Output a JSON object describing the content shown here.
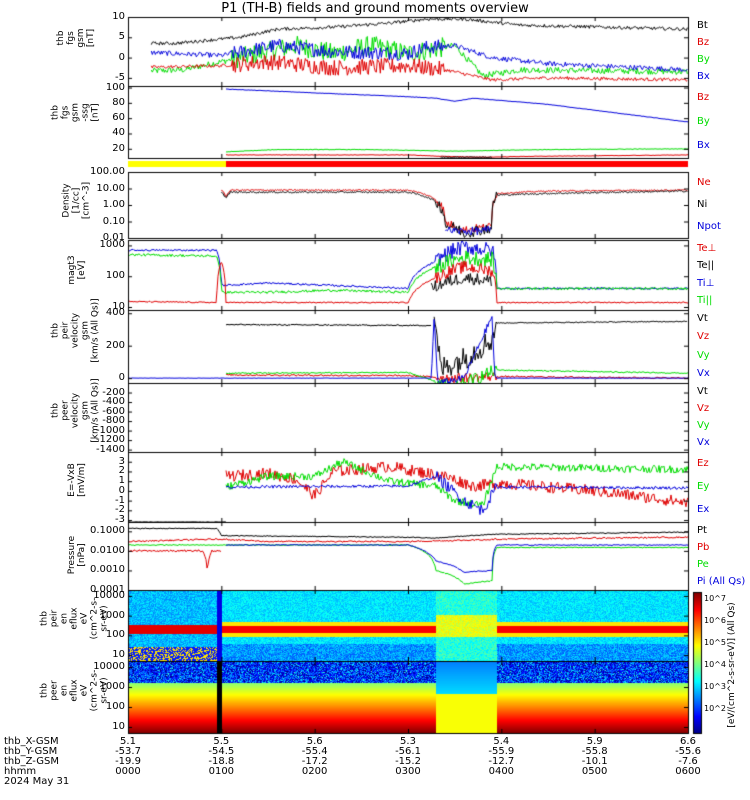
{
  "title": "P1 (TH-B) fields and ground moments overview",
  "colors": {
    "black": "#000000",
    "red": "#e00000",
    "green": "#00dd00",
    "blue": "#0000dd"
  },
  "panels": [
    {
      "id": "fgs_gsm",
      "ylabel": [
        "thb",
        "fgs",
        "gsm",
        "[nT]"
      ],
      "ylim": [
        -7,
        10
      ],
      "yticks": [
        "10",
        "5",
        "0",
        "-5"
      ],
      "ticks": [
        10,
        5,
        0,
        -5
      ],
      "legend": [
        {
          "text": "Bt",
          "color": "black"
        },
        {
          "text": "Bz",
          "color": "red"
        },
        {
          "text": "By",
          "color": "green"
        },
        {
          "text": "Bx",
          "color": "blue"
        }
      ]
    },
    {
      "id": "fgs_gsm2",
      "ylabel": [
        "thb",
        "fgs",
        "gsm",
        "-ssg",
        "[nT]"
      ],
      "ylim": [
        8,
        102
      ],
      "yticks": [
        "100",
        "80",
        "60",
        "40",
        "20"
      ],
      "ticks": [
        100,
        80,
        60,
        40,
        20
      ],
      "legend": [
        {
          "text": "Bz",
          "color": "red"
        },
        {
          "text": "By",
          "color": "green"
        },
        {
          "text": "Bx",
          "color": "blue"
        }
      ]
    },
    {
      "id": "density",
      "ylabel": [
        "Density",
        "[1/cc]",
        "[cm^-3]"
      ],
      "ylim": [
        0.01,
        100
      ],
      "log": true,
      "yticks": [
        "100.00",
        "10.00",
        "1.00",
        "0.10",
        "0.01"
      ],
      "ticks": [
        100,
        10,
        1,
        0.1,
        0.01
      ],
      "legend": [
        {
          "text": "Ne",
          "color": "red"
        },
        {
          "text": "Ni",
          "color": "black"
        },
        {
          "text": "Npot",
          "color": "blue"
        }
      ]
    },
    {
      "id": "temp",
      "ylabel": [
        "magt3",
        "[eV]"
      ],
      "ylim": [
        8,
        1500
      ],
      "log": true,
      "yticks": [
        "1000",
        "100",
        "10"
      ],
      "ticks": [
        1000,
        100,
        10
      ],
      "legend": [
        {
          "text": "Te⊥",
          "color": "red"
        },
        {
          "text": "Te||",
          "color": "black"
        },
        {
          "text": "Ti⊥",
          "color": "blue"
        },
        {
          "text": "Ti||",
          "color": "green"
        }
      ]
    },
    {
      "id": "ivel",
      "ylabel": [
        "thb",
        "peir",
        "velocity",
        "gsm",
        "[km/s (All Qs)]"
      ],
      "ylim": [
        -30,
        420
      ],
      "yticks": [
        "400",
        "200",
        "0"
      ],
      "ticks": [
        400,
        200,
        0
      ],
      "legend": [
        {
          "text": "Vt",
          "color": "black"
        },
        {
          "text": "Vz",
          "color": "red"
        },
        {
          "text": "Vy",
          "color": "green"
        },
        {
          "text": "Vx",
          "color": "blue"
        }
      ]
    },
    {
      "id": "evel",
      "ylabel": [
        "thb",
        "peer",
        "velocity",
        "gsm",
        "[km/s (All Qs)]"
      ],
      "ylim": [
        -1450,
        0
      ],
      "yticks": [
        "-200",
        "-400",
        "-600",
        "-800",
        "-1000",
        "-1200",
        "-1400"
      ],
      "ticks": [
        -200,
        -400,
        -600,
        -800,
        -1000,
        -1200,
        -1400
      ],
      "legend": [
        {
          "text": "Vt",
          "color": "black"
        },
        {
          "text": "Vz",
          "color": "red"
        },
        {
          "text": "Vy",
          "color": "green"
        },
        {
          "text": "Vx",
          "color": "blue"
        }
      ]
    },
    {
      "id": "efield",
      "ylabel": [
        "E=-VxB",
        "[mV/m]"
      ],
      "ylim": [
        -3.2,
        4
      ],
      "yticks": [
        "3",
        "2",
        "1",
        "0",
        "-1",
        "-2",
        "-3"
      ],
      "ticks": [
        3,
        2,
        1,
        0,
        -1,
        -2,
        -3
      ],
      "legend": [
        {
          "text": "Ez",
          "color": "red"
        },
        {
          "text": "Ey",
          "color": "green"
        },
        {
          "text": "Ex",
          "color": "blue"
        }
      ]
    },
    {
      "id": "pressure",
      "ylabel": [
        "Pressure",
        "[nPa]"
      ],
      "ylim": [
        0.0001,
        0.3
      ],
      "log": true,
      "yticks": [
        "0.1000",
        "0.0100",
        "0.0010",
        "0.0001"
      ],
      "ticks": [
        0.1,
        0.01,
        0.001,
        0.0001
      ],
      "legend": [
        {
          "text": "Pt",
          "color": "black"
        },
        {
          "text": "Pb",
          "color": "red"
        },
        {
          "text": "Pe",
          "color": "green"
        },
        {
          "text": "Pi (All Qs)",
          "color": "blue"
        }
      ]
    },
    {
      "id": "ion_spec",
      "ylabel": [
        "thb",
        "peir",
        "en",
        "eflux",
        "eV",
        "(cm^2-s-",
        "sr-eV)"
      ],
      "ylim": [
        5,
        20000
      ],
      "log": true,
      "yticks": [
        "10000",
        "1000",
        "100",
        "10"
      ],
      "ticks": [
        10000,
        1000,
        100,
        10
      ]
    },
    {
      "id": "ele_spec",
      "ylabel": [
        "thb",
        "peer",
        "en",
        "eflux",
        "eV",
        "(cm^2-s-",
        "sr-eV)"
      ],
      "ylim": [
        5,
        20000
      ],
      "log": true,
      "yticks": [
        "10000",
        "1000",
        "100",
        "10"
      ],
      "ticks": [
        10000,
        1000,
        100,
        10
      ]
    }
  ],
  "colorbar": {
    "labels": [
      "10^7",
      "10^6",
      "10^5",
      "10^4",
      "10^3",
      "10^2"
    ],
    "labels2": [
      "10^6",
      "10^4",
      "10^2"
    ],
    "title": "[eV/(cm^2-s-sr-eV)] (All Qs)"
  },
  "footer": {
    "row_labels": [
      "thb_X-GSM",
      "thb_Y-GSM",
      "thb_Z-GSM",
      "hhmm",
      "2024 May 31"
    ],
    "columns": [
      [
        "5.1",
        "-53.7",
        "-19.9",
        "0000"
      ],
      [
        "5.5",
        "-54.5",
        "-18.8",
        "0100"
      ],
      [
        "5.6",
        "-55.4",
        "-17.2",
        "0200"
      ],
      [
        "5.3",
        "-56.1",
        "-15.2",
        "0300"
      ],
      [
        "5.4",
        "-55.9",
        "-12.7",
        "0400"
      ],
      [
        "5.9",
        "-55.8",
        "-10.1",
        "0500"
      ],
      [
        "6.6",
        "-55.6",
        "-7.6",
        "0600"
      ]
    ]
  },
  "chart_data": [
    {
      "type": "line",
      "title": "P1 (TH-B) fields and ground moments overview",
      "ylabel": "thb fgs gsm [nT]",
      "x": [
        "0000",
        "0100",
        "0200",
        "0300",
        "0400",
        "0500",
        "0600"
      ],
      "ylim": [
        -7,
        10
      ],
      "series": [
        {
          "name": "Bt",
          "values": [
            4,
            5,
            8,
            9,
            7,
            7,
            7
          ]
        },
        {
          "name": "Bz",
          "values": [
            -3,
            -2,
            -2,
            -3,
            -5,
            -5,
            -5
          ]
        },
        {
          "name": "By",
          "values": [
            -3,
            -1,
            3,
            2,
            -4,
            -3,
            -3
          ]
        },
        {
          "name": "Bx",
          "values": [
            1,
            0,
            0,
            1,
            -2,
            -3,
            -4
          ]
        }
      ]
    },
    {
      "type": "line",
      "ylabel": "thb fgs gsm [nT]",
      "x": [
        "0000",
        "0100",
        "0200",
        "0300",
        "0400",
        "0500",
        "0600"
      ],
      "ylim": [
        8,
        102
      ],
      "series": [
        {
          "name": "Bx",
          "values": [
            null,
            98,
            92,
            87,
            80,
            70,
            55
          ]
        },
        {
          "name": "By",
          "values": [
            null,
            18,
            20,
            20,
            20,
            20,
            20
          ]
        },
        {
          "name": "Bz",
          "values": [
            null,
            14,
            14,
            12,
            10,
            10,
            12
          ]
        }
      ]
    },
    {
      "type": "line",
      "ylabel": "Density [1/cc] [cm^-3]",
      "x": [
        "0000",
        "0100",
        "0200",
        "0300",
        "0330",
        "0400",
        "0500",
        "0600"
      ],
      "series": [
        {
          "name": "Ne",
          "values": [
            null,
            8,
            8,
            8,
            0.03,
            5,
            8,
            8
          ]
        },
        {
          "name": "Ni",
          "values": [
            null,
            7,
            7,
            6,
            0.02,
            4,
            7,
            8
          ]
        }
      ]
    },
    {
      "type": "line",
      "ylabel": "magt3 [eV]",
      "x": [
        "0000",
        "0100",
        "0200",
        "0300",
        "0330",
        "0400",
        "0500",
        "0600"
      ],
      "series": [
        {
          "name": "Ti⊥",
          "values": [
            700,
            60,
            50,
            40,
            600,
            40,
            45,
            40
          ]
        },
        {
          "name": "Ti||",
          "values": [
            500,
            30,
            30,
            35,
            300,
            40,
            45,
            40
          ]
        },
        {
          "name": "Te⊥",
          "values": [
            15,
            15,
            15,
            15,
            150,
            15,
            15,
            15
          ]
        },
        {
          "name": "Te||",
          "values": [
            null,
            null,
            null,
            null,
            90,
            null,
            null,
            null
          ]
        }
      ]
    },
    {
      "type": "line",
      "ylabel": "thb peir velocity gsm [km/s (All Qs)]",
      "x": [
        "0000",
        "0100",
        "0200",
        "0300",
        "0330",
        "0400",
        "0500",
        "0600"
      ],
      "series": [
        {
          "name": "Vt",
          "values": [
            null,
            330,
            330,
            320,
            100,
            350,
            350,
            350
          ]
        },
        {
          "name": "Vz",
          "values": [
            null,
            20,
            20,
            10,
            0,
            0,
            0,
            0
          ]
        },
        {
          "name": "Vy",
          "values": [
            null,
            30,
            30,
            30,
            -60,
            50,
            30,
            30
          ]
        },
        {
          "name": "Vx",
          "values": [
            null,
            0,
            0,
            0,
            -30,
            0,
            0,
            0
          ]
        }
      ]
    },
    {
      "type": "line",
      "ylabel": "thb peer velocity gsm [km/s (All Qs)]",
      "ylim": [
        -1450,
        0
      ],
      "series": []
    },
    {
      "type": "line",
      "ylabel": "E=-VxB [mV/m]",
      "x": [
        "0000",
        "0100",
        "0200",
        "0300",
        "0330",
        "0400",
        "0500",
        "0600"
      ],
      "series": [
        {
          "name": "Ez",
          "values": [
            null,
            1.5,
            2,
            2.5,
            1,
            0.5,
            0,
            -1
          ]
        },
        {
          "name": "Ey",
          "values": [
            null,
            0.5,
            1,
            1,
            -1,
            2,
            2,
            2
          ]
        },
        {
          "name": "Ex",
          "values": [
            null,
            0.5,
            0.5,
            0.5,
            -1,
            0.5,
            0.5,
            0.3
          ]
        }
      ]
    },
    {
      "type": "line",
      "ylabel": "Pressure [nPa]",
      "x": [
        "0000",
        "0100",
        "0200",
        "0300",
        "0330",
        "0400",
        "0500",
        "0600"
      ],
      "series": [
        {
          "name": "Pt",
          "values": [
            0.1,
            0.05,
            0.05,
            0.04,
            0.04,
            0.07,
            0.08,
            0.09
          ]
        },
        {
          "name": "Pb",
          "values": [
            0.02,
            0.04,
            0.03,
            0.03,
            0.035,
            0.04,
            0.04,
            0.05
          ]
        },
        {
          "name": "Pe",
          "values": [
            0.02,
            0.02,
            0.02,
            0.02,
            0.0002,
            0.015,
            0.015,
            0.015
          ]
        },
        {
          "name": "Pi",
          "values": [
            null,
            0.02,
            0.02,
            0.02,
            0.0008,
            0.02,
            0.02,
            0.02
          ]
        }
      ]
    },
    {
      "type": "heatmap",
      "ylabel": "thb peir en eflux eV (cm^2-s-sr-eV)",
      "x": [
        "0000",
        "0600"
      ],
      "ylim": [
        5,
        20000
      ]
    },
    {
      "type": "heatmap",
      "ylabel": "thb peer en eflux eV (cm^2-s-sr-eV)",
      "x": [
        "0000",
        "0600"
      ],
      "ylim": [
        5,
        20000
      ]
    }
  ]
}
